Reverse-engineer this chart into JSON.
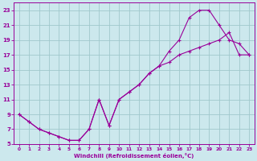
{
  "xlabel": "Windchill (Refroidissement éolien,°C)",
  "xlim": [
    -0.5,
    23.5
  ],
  "ylim": [
    5,
    24
  ],
  "xticks": [
    0,
    1,
    2,
    3,
    4,
    5,
    6,
    7,
    8,
    9,
    10,
    11,
    12,
    13,
    14,
    15,
    16,
    17,
    18,
    19,
    20,
    21,
    22,
    23
  ],
  "yticks": [
    5,
    7,
    9,
    11,
    13,
    15,
    17,
    19,
    21,
    23
  ],
  "background_color": "#cce8ed",
  "grid_color": "#a0c8cc",
  "line_color": "#990099",
  "curve1_x": [
    0,
    1,
    2,
    3,
    4,
    5,
    6,
    7,
    8,
    9,
    10,
    11,
    12,
    13,
    14,
    15,
    16,
    17,
    18,
    19,
    20,
    21,
    22,
    23
  ],
  "curve1_y": [
    9,
    8,
    7,
    6.5,
    6,
    5.5,
    5.5,
    7,
    11,
    7.5,
    11,
    12,
    13,
    14.5,
    15.5,
    17.5,
    19,
    22,
    23,
    23,
    21,
    19,
    18.5,
    17
  ],
  "curve2_x": [
    0,
    1,
    2,
    3,
    4,
    5,
    6,
    7,
    8,
    9,
    10,
    11,
    12,
    13,
    14,
    15,
    16,
    17,
    18,
    19,
    20,
    21,
    22,
    23
  ],
  "curve2_y": [
    9,
    8,
    7,
    6.5,
    6,
    5.5,
    5.5,
    7,
    11,
    7.5,
    11,
    12,
    13,
    14.5,
    15.5,
    16,
    17,
    17.5,
    18,
    18.5,
    19,
    20,
    17,
    17
  ]
}
